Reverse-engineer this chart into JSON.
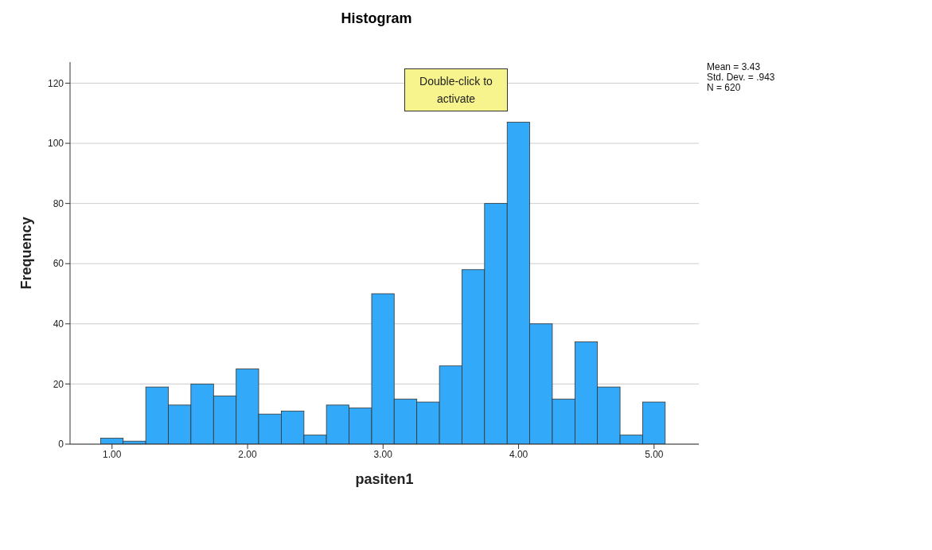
{
  "chart_data": {
    "type": "histogram",
    "title": "Histogram",
    "xlabel": "pasiten1",
    "ylabel": "Frequency",
    "bins": [
      0.917,
      1.083,
      1.25,
      1.417,
      1.583,
      1.75,
      1.917,
      2.083,
      2.25,
      2.417,
      2.583,
      2.75,
      2.917,
      3.083,
      3.25,
      3.417,
      3.583,
      3.75,
      3.917,
      4.083,
      4.25,
      4.417,
      4.583,
      4.75,
      4.917,
      5.083
    ],
    "values": [
      2,
      1,
      19,
      13,
      20,
      16,
      25,
      10,
      11,
      3,
      13,
      12,
      50,
      15,
      14,
      26,
      58,
      80,
      107,
      40,
      15,
      34,
      19,
      3,
      14
    ],
    "color": "#33aaf9",
    "xlim": [
      0.69,
      5.33
    ],
    "xticks": [
      {
        "value": 1,
        "label": "1.00"
      },
      {
        "value": 2,
        "label": "2.00"
      },
      {
        "value": 3,
        "label": "3.00"
      },
      {
        "value": 4,
        "label": "4.00"
      },
      {
        "value": 5,
        "label": "5.00"
      }
    ],
    "ylim": [
      0,
      127
    ],
    "yticks": [
      0,
      20,
      40,
      60,
      80,
      100,
      120
    ],
    "grid": "y",
    "annotations": [
      "Mean = 3.43",
      "Std. Dev. = .943",
      "N = 620",
      "Double-click to activate"
    ]
  }
}
